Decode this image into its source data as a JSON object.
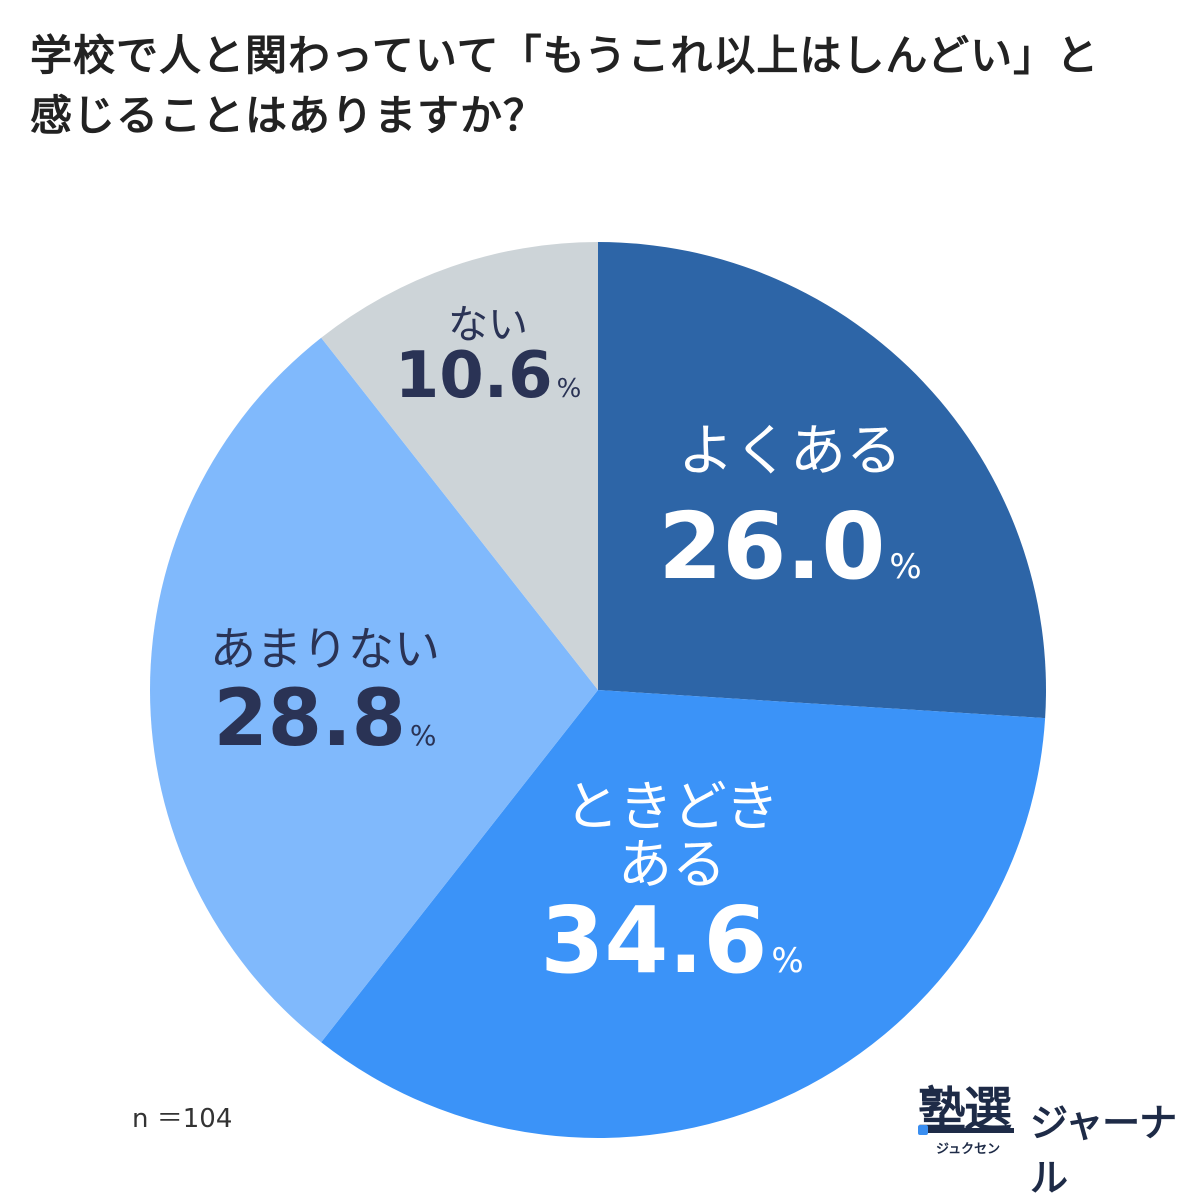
{
  "title_lines": [
    "学校で人と関わっていて「もうこれ以上はしんどい」と",
    "感じることはありますか？"
  ],
  "n_label": "n ＝104",
  "logo": {
    "main": "塾選",
    "ruby": "ジュクセン",
    "side": "ジャーナル"
  },
  "percent_sign": "%",
  "chart_data": {
    "type": "pie",
    "start": "12 o'clock",
    "direction": "clockwise",
    "slices": [
      {
        "label": [
          "よくある"
        ],
        "value": 26.0,
        "value_text": "26.0",
        "color": "#2d65a7",
        "text_color": "#ffffff"
      },
      {
        "label": [
          "ときどき",
          "ある"
        ],
        "value": 34.6,
        "value_text": "34.6",
        "color": "#3b93f8",
        "text_color": "#ffffff"
      },
      {
        "label": [
          "あまりない"
        ],
        "value": 28.8,
        "value_text": "28.8",
        "color": "#80b9fc",
        "text_color": "#2a3355"
      },
      {
        "label": [
          "ない"
        ],
        "value": 10.6,
        "value_text": "10.6",
        "color": "#cdd4d8",
        "text_color": "#2a3355"
      }
    ]
  }
}
